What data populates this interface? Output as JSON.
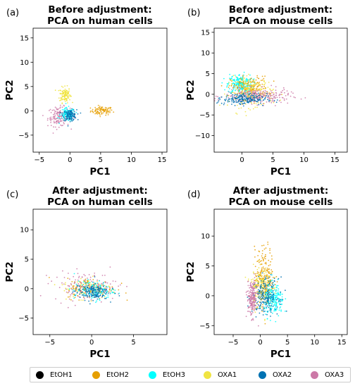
{
  "chart_data": [
    {
      "panel_label": "(a)",
      "type": "scatter",
      "title": "Before adjustment:\nPCA on human cells",
      "xlabel": "PC1",
      "ylabel": "PC2",
      "xlim": [
        -6,
        15.8
      ],
      "ylim": [
        -8.5,
        17
      ],
      "xticks": [
        -5,
        0,
        5,
        10,
        15
      ],
      "yticks": [
        -5,
        0,
        5,
        10,
        15
      ],
      "clusters": [
        {
          "series": "EtOH2",
          "center": [
            5.2,
            0.0
          ],
          "spread": [
            0.9,
            0.45
          ],
          "n": 90
        },
        {
          "series": "OXA1",
          "center": [
            -0.8,
            3.3
          ],
          "spread": [
            0.45,
            0.8
          ],
          "n": 120
        },
        {
          "series": "OXA3",
          "center": [
            -1.8,
            -1.2
          ],
          "spread": [
            0.9,
            1.0
          ],
          "n": 140
        },
        {
          "series": "EtOH3",
          "center": [
            -0.4,
            -0.8
          ],
          "spread": [
            0.6,
            0.7
          ],
          "n": 110
        },
        {
          "series": "OXA2",
          "center": [
            0.0,
            -0.9
          ],
          "spread": [
            0.55,
            0.55
          ],
          "n": 130
        }
      ]
    },
    {
      "panel_label": "(b)",
      "type": "scatter",
      "title": "Before adjustment:\nPCA on mouse cells",
      "xlabel": "PC1",
      "ylabel": "PC2",
      "xlim": [
        -4.5,
        17
      ],
      "ylim": [
        -14,
        16
      ],
      "xticks": [
        0,
        5,
        10,
        15
      ],
      "yticks": [
        -10,
        -5,
        0,
        5,
        10,
        15
      ],
      "clusters": [
        {
          "series": "EtOH3",
          "center": [
            -0.3,
            2.5
          ],
          "spread": [
            1.0,
            1.2
          ],
          "n": 220
        },
        {
          "series": "EtOH2",
          "center": [
            1.2,
            1.5
          ],
          "spread": [
            1.5,
            1.4
          ],
          "n": 180
        },
        {
          "series": "OXA1",
          "center": [
            1.5,
            0.5
          ],
          "spread": [
            1.8,
            1.8
          ],
          "n": 200
        },
        {
          "series": "OXA3",
          "center": [
            2.5,
            -0.5
          ],
          "spread": [
            2.6,
            0.9
          ],
          "n": 260
        },
        {
          "series": "OXA2",
          "center": [
            0.0,
            -1.2
          ],
          "spread": [
            2.0,
            0.7
          ],
          "n": 200
        }
      ]
    },
    {
      "panel_label": "(c)",
      "type": "scatter",
      "title": "After adjustment:\nPCA on human cells",
      "xlabel": "PC1",
      "ylabel": "PC2",
      "xlim": [
        -7,
        9
      ],
      "ylim": [
        -7.8,
        13.5
      ],
      "xticks": [
        -5,
        0,
        5
      ],
      "yticks": [
        -5,
        0,
        5,
        10
      ],
      "clusters": [
        {
          "series": "OXA1",
          "center": [
            -0.5,
            0.2
          ],
          "spread": [
            1.5,
            0.9
          ],
          "n": 110
        },
        {
          "series": "EtOH2",
          "center": [
            0.0,
            0.0
          ],
          "spread": [
            1.5,
            0.9
          ],
          "n": 110
        },
        {
          "series": "OXA3",
          "center": [
            -0.8,
            0.4
          ],
          "spread": [
            1.9,
            1.2
          ],
          "n": 150
        },
        {
          "series": "EtOH3",
          "center": [
            0.3,
            -0.3
          ],
          "spread": [
            1.2,
            0.8
          ],
          "n": 120
        },
        {
          "series": "OXA2",
          "center": [
            0.0,
            -0.5
          ],
          "spread": [
            1.0,
            0.7
          ],
          "n": 160
        }
      ]
    },
    {
      "panel_label": "(d)",
      "type": "scatter",
      "title": "After adjustment:\nPCA on mouse cells",
      "xlabel": "PC1",
      "ylabel": "PC2",
      "xlim": [
        -8.5,
        16
      ],
      "ylim": [
        -6.5,
        14.5
      ],
      "xticks": [
        -5,
        0,
        5,
        10,
        15
      ],
      "yticks": [
        -5,
        0,
        5,
        10
      ],
      "clusters": [
        {
          "series": "EtOH2",
          "center": [
            0.8,
            3.0
          ],
          "spread": [
            0.9,
            2.5
          ],
          "n": 220
        },
        {
          "series": "OXA1",
          "center": [
            0.2,
            1.5
          ],
          "spread": [
            1.0,
            1.8
          ],
          "n": 180
        },
        {
          "series": "EtOH3",
          "center": [
            2.5,
            -0.8
          ],
          "spread": [
            0.9,
            1.3
          ],
          "n": 200
        },
        {
          "series": "OXA2",
          "center": [
            1.0,
            0.0
          ],
          "spread": [
            1.2,
            1.5
          ],
          "n": 200
        },
        {
          "series": "OXA3",
          "center": [
            -1.5,
            -0.5
          ],
          "spread": [
            0.45,
            1.5
          ],
          "n": 200
        }
      ]
    }
  ],
  "legend": {
    "placement": "bottom",
    "items": [
      {
        "label": "EtOH1",
        "color": "#000000"
      },
      {
        "label": "EtOH2",
        "color": "#E69F00"
      },
      {
        "label": "EtOH3",
        "color": "#00FFFF"
      },
      {
        "label": "OXA1",
        "color": "#F0E442"
      },
      {
        "label": "OXA2",
        "color": "#0072B2"
      },
      {
        "label": "OXA3",
        "color": "#CC79A7"
      }
    ]
  }
}
